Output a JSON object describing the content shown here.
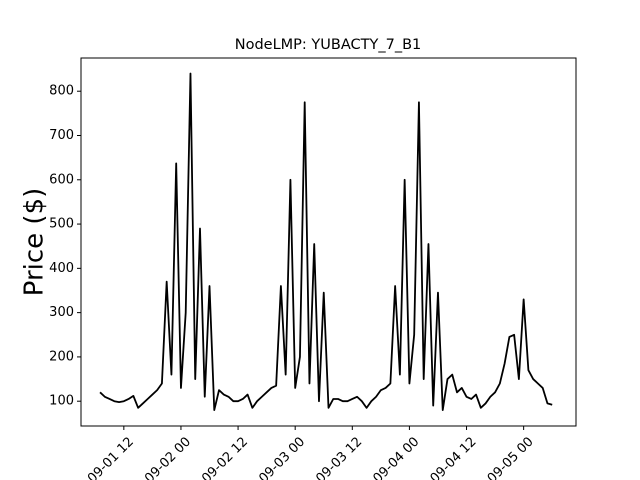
{
  "chart_data": {
    "type": "line",
    "title": "NodeLMP: YUBACTY_7_B1",
    "y_label": "Price ($)",
    "color": "#000000",
    "x": [
      "09-01 07",
      "09-01 08",
      "09-01 09",
      "09-01 10",
      "09-01 11",
      "09-01 12",
      "09-01 13",
      "09-01 14",
      "09-01 15",
      "09-01 16",
      "09-01 17",
      "09-01 18",
      "09-01 19",
      "09-01 20",
      "09-01 21",
      "09-01 22",
      "09-01 23",
      "09-02 00",
      "09-02 01",
      "09-02 02",
      "09-02 03",
      "09-02 04",
      "09-02 05",
      "09-02 06",
      "09-02 07",
      "09-02 08",
      "09-02 09",
      "09-02 10",
      "09-02 11",
      "09-02 12",
      "09-02 13",
      "09-02 14",
      "09-02 15",
      "09-02 16",
      "09-02 17",
      "09-02 18",
      "09-02 19",
      "09-02 20",
      "09-02 21",
      "09-02 22",
      "09-02 23",
      "09-03 00",
      "09-03 01",
      "09-03 02",
      "09-03 03",
      "09-03 04",
      "09-03 05",
      "09-03 06",
      "09-03 07",
      "09-03 08",
      "09-03 09",
      "09-03 10",
      "09-03 11",
      "09-03 12",
      "09-03 13",
      "09-03 14",
      "09-03 15",
      "09-03 16",
      "09-03 17",
      "09-03 18",
      "09-03 19",
      "09-03 20",
      "09-03 21",
      "09-03 22",
      "09-03 23",
      "09-04 00",
      "09-04 01",
      "09-04 02",
      "09-04 03",
      "09-04 04",
      "09-04 05",
      "09-04 06",
      "09-04 07",
      "09-04 08",
      "09-04 09",
      "09-04 10",
      "09-04 11",
      "09-04 12",
      "09-04 13",
      "09-04 14",
      "09-04 15",
      "09-04 16",
      "09-04 17",
      "09-04 18",
      "09-04 19",
      "09-04 20",
      "09-04 21",
      "09-04 22",
      "09-04 23",
      "09-05 00",
      "09-05 01",
      "09-05 02",
      "09-05 03",
      "09-05 04",
      "09-05 05",
      "09-05 06"
    ],
    "values": [
      120,
      110,
      105,
      100,
      98,
      100,
      105,
      112,
      85,
      95,
      105,
      115,
      125,
      140,
      370,
      160,
      637,
      130,
      300,
      840,
      150,
      490,
      110,
      360,
      80,
      125,
      115,
      110,
      100,
      100,
      105,
      115,
      85,
      100,
      110,
      120,
      130,
      135,
      360,
      160,
      600,
      130,
      200,
      775,
      140,
      455,
      100,
      345,
      85,
      105,
      105,
      100,
      100,
      105,
      110,
      100,
      85,
      100,
      110,
      125,
      130,
      140,
      360,
      160,
      600,
      140,
      250,
      775,
      150,
      455,
      90,
      345,
      80,
      150,
      160,
      120,
      130,
      110,
      105,
      115,
      85,
      95,
      110,
      120,
      140,
      185,
      245,
      250,
      150,
      330,
      170,
      150,
      140,
      130,
      95,
      92
    ],
    "xlim": [
      "09-01 03",
      "09-05 11"
    ],
    "xticks": [
      "09-01 12",
      "09-02 00",
      "09-02 12",
      "09-03 00",
      "09-03 12",
      "09-04 00",
      "09-04 12",
      "09-05 00"
    ],
    "ylim": [
      44,
      875
    ],
    "yticks": [
      100,
      200,
      300,
      400,
      500,
      600,
      700,
      800
    ]
  }
}
